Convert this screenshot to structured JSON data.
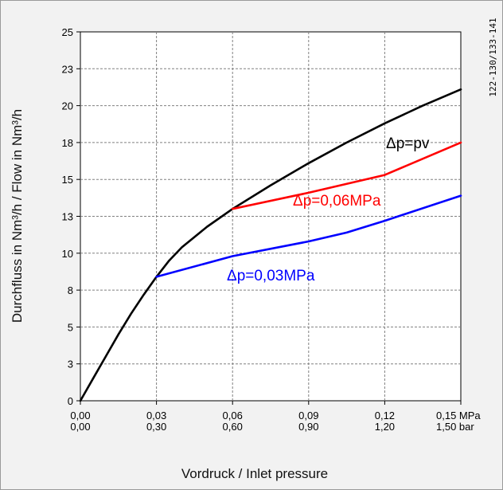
{
  "chart_data": {
    "type": "line",
    "xlabel": "Vordruck / Inlet pressure",
    "ylabel": "Durchfluss in Nm³/h   /  Flow in Nm³/h",
    "figure_code": "122-130/133-141",
    "xlim": [
      0,
      0.15
    ],
    "ylim": [
      0,
      25
    ],
    "x_ticks": [
      {
        "value": 0.0,
        "mpa": "0,00",
        "bar": "0,00"
      },
      {
        "value": 0.03,
        "mpa": "0,03",
        "bar": "0,30"
      },
      {
        "value": 0.06,
        "mpa": "0,06",
        "bar": "0,60"
      },
      {
        "value": 0.09,
        "mpa": "0,09",
        "bar": "0,90"
      },
      {
        "value": 0.12,
        "mpa": "0,12",
        "bar": "1,20"
      },
      {
        "value": 0.15,
        "mpa": "0,15 MPa",
        "bar": "1,50 bar"
      }
    ],
    "y_ticks": [
      {
        "value": 0,
        "label": "0"
      },
      {
        "value": 2.5,
        "label": "3"
      },
      {
        "value": 5,
        "label": "5"
      },
      {
        "value": 7.5,
        "label": "8"
      },
      {
        "value": 10,
        "label": "10"
      },
      {
        "value": 12.5,
        "label": "13"
      },
      {
        "value": 15,
        "label": "15"
      },
      {
        "value": 17.5,
        "label": "18"
      },
      {
        "value": 20,
        "label": "20"
      },
      {
        "value": 22.5,
        "label": "23"
      },
      {
        "value": 25,
        "label": "25"
      }
    ],
    "grid": true,
    "series": [
      {
        "name": "Δp=pv",
        "color": "#000000",
        "points": [
          [
            0,
            0
          ],
          [
            0.005,
            1.5
          ],
          [
            0.01,
            3.0
          ],
          [
            0.015,
            4.5
          ],
          [
            0.02,
            5.9
          ],
          [
            0.025,
            7.2
          ],
          [
            0.03,
            8.4
          ],
          [
            0.035,
            9.5
          ],
          [
            0.04,
            10.4
          ],
          [
            0.05,
            11.8
          ],
          [
            0.06,
            13.0
          ],
          [
            0.075,
            14.6
          ],
          [
            0.09,
            16.1
          ],
          [
            0.105,
            17.5
          ],
          [
            0.12,
            18.8
          ],
          [
            0.135,
            20.0
          ],
          [
            0.15,
            21.1
          ]
        ]
      },
      {
        "name": "Δp=0,06MPa",
        "color": "#ff0000",
        "points": [
          [
            0.06,
            13.0
          ],
          [
            0.09,
            14.1
          ],
          [
            0.12,
            15.3
          ],
          [
            0.15,
            17.5
          ]
        ]
      },
      {
        "name": "Δp=0,03MPa",
        "color": "#0000ff",
        "points": [
          [
            0.03,
            8.4
          ],
          [
            0.06,
            9.8
          ],
          [
            0.09,
            10.8
          ],
          [
            0.105,
            11.4
          ],
          [
            0.12,
            12.2
          ],
          [
            0.15,
            13.9
          ]
        ]
      }
    ]
  }
}
